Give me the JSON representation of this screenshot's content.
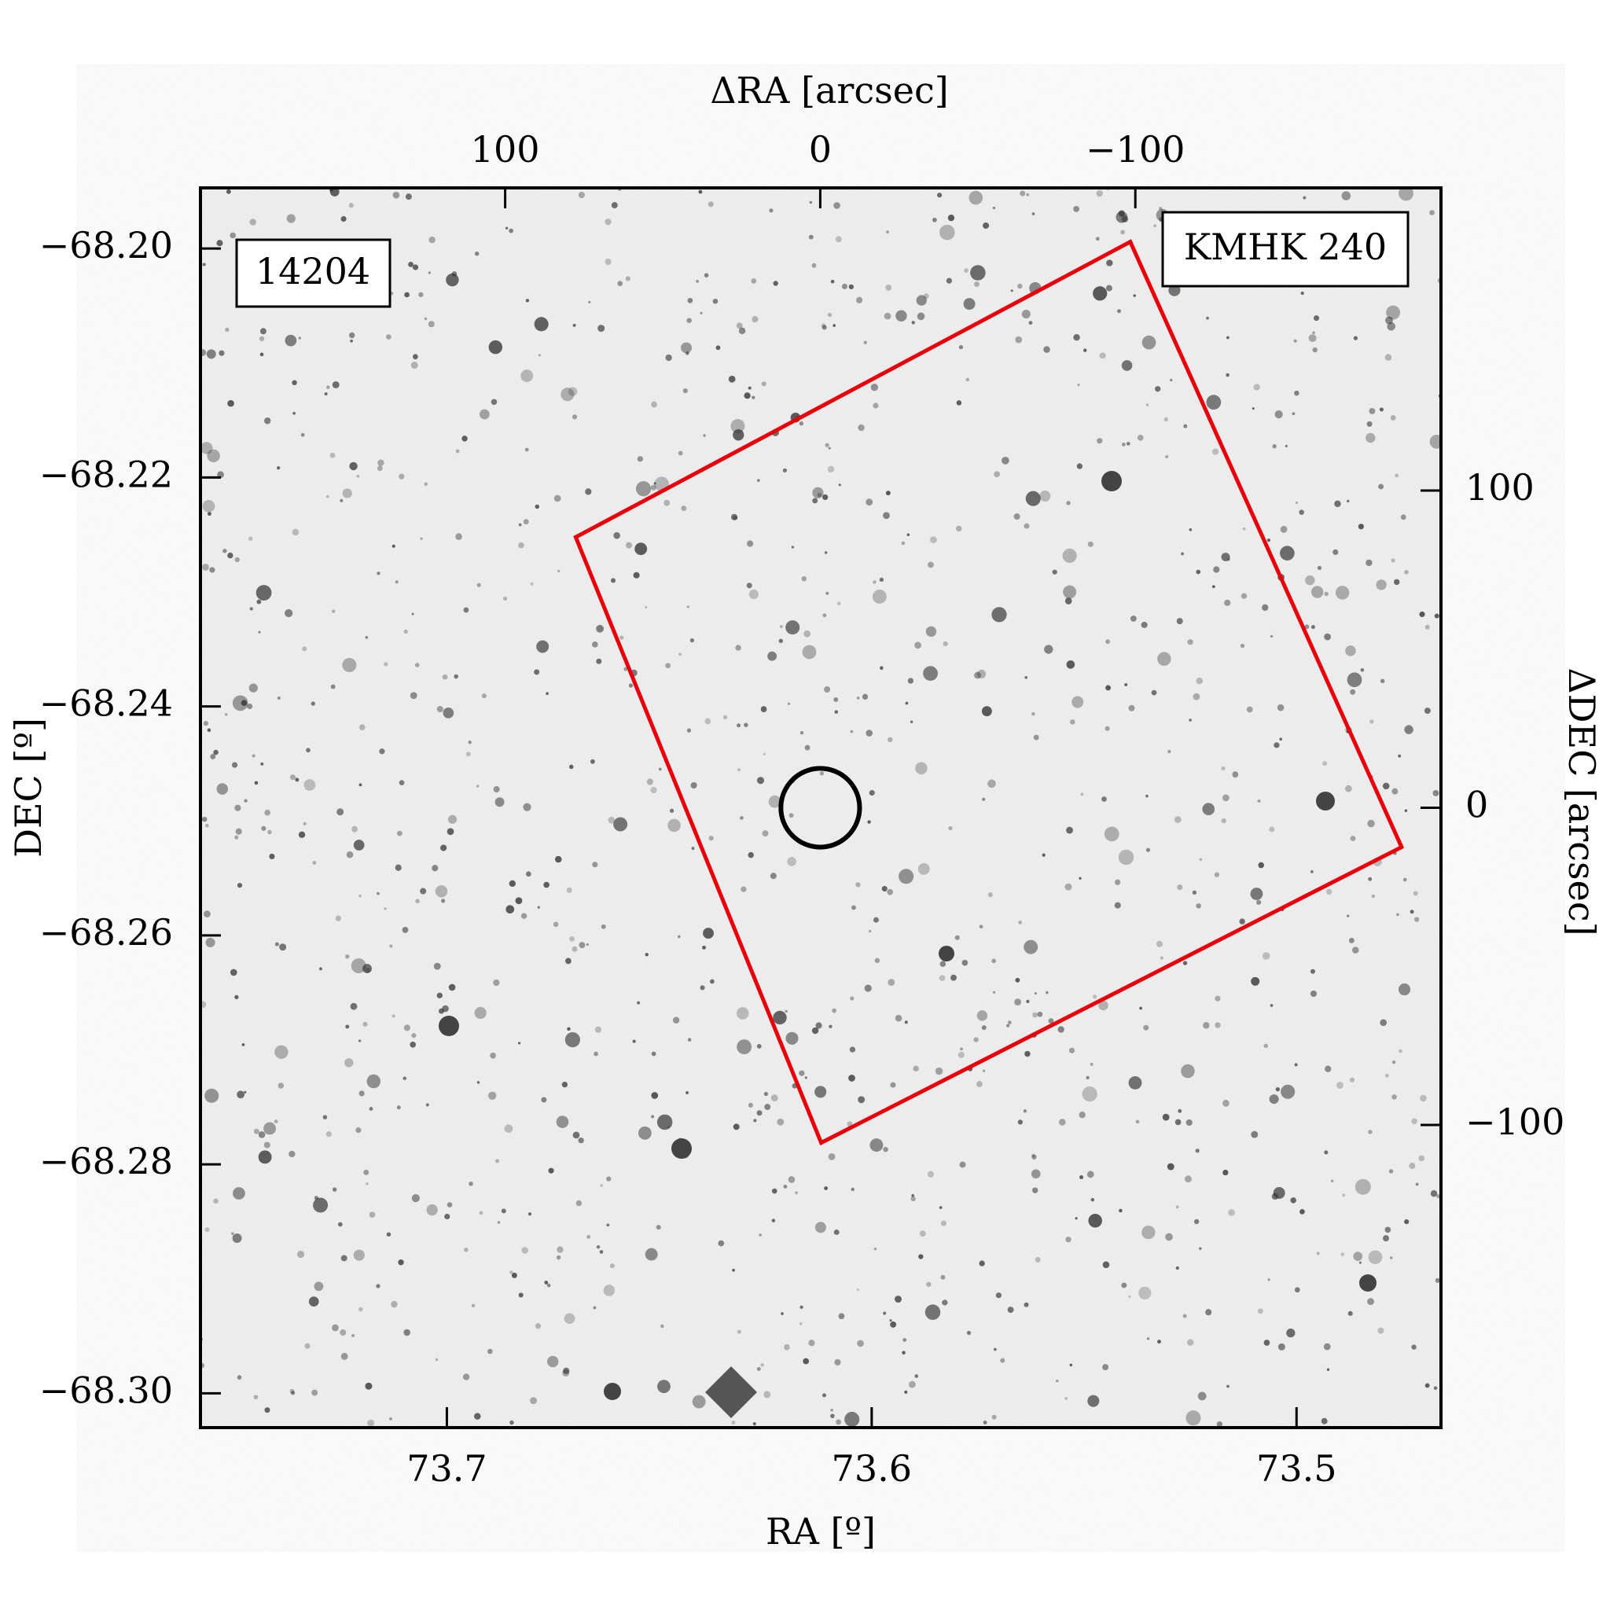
{
  "chart_data": {
    "type": "image",
    "xlabel": "RA [º]",
    "ylabel": "DEC [º]",
    "x2label": "ΔRA [arcsec]",
    "y2label": "ΔDEC [arcsec]",
    "xlim": [
      73.758,
      73.466
    ],
    "xticks": [
      73.7,
      73.6,
      73.5
    ],
    "ylim": [
      -68.303,
      -68.1947
    ],
    "yticks": [
      {
        "value": -68.2,
        "label": "−68.20"
      },
      {
        "value": -68.22,
        "label": "−68.22"
      },
      {
        "value": -68.24,
        "label": "−68.24"
      },
      {
        "value": -68.26,
        "label": "−68.26"
      },
      {
        "value": -68.28,
        "label": "−68.28"
      },
      {
        "value": -68.3,
        "label": "−68.30"
      }
    ],
    "x2lim": [
      196.7,
      -197
    ],
    "x2ticks": [
      100,
      0,
      {
        "value": -100,
        "label": "−100"
      }
    ],
    "y2lim": [
      -195.4,
      195.4
    ],
    "y2ticks": [
      100,
      0,
      {
        "value": -100,
        "label": "−100"
      }
    ],
    "annotations": [
      {
        "text": "14204",
        "color": "#e8000b"
      },
      {
        "text": "KMHK 240",
        "color": "#000000"
      }
    ],
    "footprint": {
      "color": "#e8000b",
      "x": [
        -98.4,
        -184.5,
        -0.3,
        77.6
      ],
      "y": [
        178.4,
        -12.4,
        -105.6,
        85.3
      ],
      "axis": "y2"
    },
    "circle": {
      "x": 0,
      "y": 0,
      "radius": 12.5,
      "color": "#000000",
      "axis": "y2"
    }
  }
}
